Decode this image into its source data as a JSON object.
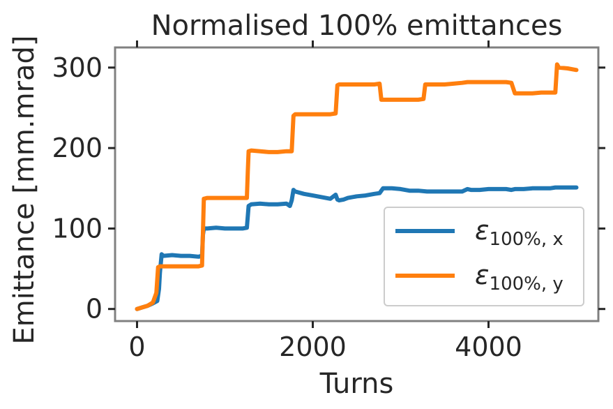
{
  "chart_data": {
    "type": "line",
    "title": "Normalised 100% emittances",
    "xlabel": "Turns",
    "ylabel": "Emittance [mm.mrad]",
    "xlim": [
      -250,
      5250
    ],
    "ylim": [
      -15,
      325
    ],
    "xticks": [
      0,
      2000,
      4000
    ],
    "xtick_labels": [
      "0",
      "2000",
      "4000"
    ],
    "yticks": [
      0,
      100,
      200,
      300
    ],
    "ytick_labels": [
      "0",
      "100",
      "200",
      "300"
    ],
    "grid": false,
    "legend_position": "lower-right",
    "series": [
      {
        "name": "ε100%, x",
        "legend_main": "ε",
        "legend_sub": "100%, x",
        "color": "#1f77b4",
        "x": [
          0,
          60,
          120,
          180,
          230,
          250,
          260,
          280,
          300,
          400,
          500,
          600,
          700,
          740,
          750,
          760,
          800,
          900,
          1000,
          1100,
          1200,
          1250,
          1260,
          1270,
          1300,
          1400,
          1500,
          1600,
          1700,
          1740,
          1760,
          1780,
          1800,
          1900,
          2000,
          2100,
          2200,
          2260,
          2280,
          2300,
          2350,
          2400,
          2500,
          2600,
          2700,
          2760,
          2800,
          2900,
          3000,
          3100,
          3200,
          3300,
          3400,
          3500,
          3600,
          3700,
          3760,
          3800,
          3900,
          4000,
          4100,
          4200,
          4260,
          4300,
          4400,
          4500,
          4600,
          4700,
          4760,
          4800,
          4900,
          5000
        ],
        "y": [
          0,
          2,
          4,
          7,
          10,
          25,
          45,
          68,
          66,
          67,
          66,
          66,
          65,
          66,
          92,
          100,
          100,
          101,
          100,
          100,
          100,
          101,
          115,
          128,
          130,
          131,
          130,
          130,
          131,
          128,
          135,
          148,
          146,
          143,
          141,
          139,
          137,
          142,
          136,
          135,
          136,
          138,
          140,
          141,
          143,
          144,
          150,
          150,
          149,
          147,
          147,
          146,
          146,
          146,
          146,
          146,
          149,
          148,
          148,
          149,
          149,
          149,
          148,
          149,
          149,
          150,
          150,
          150,
          151,
          151,
          151,
          151
        ]
      },
      {
        "name": "ε100%, y",
        "legend_main": "ε",
        "legend_sub": "100%, y",
        "color": "#ff7f0e",
        "x": [
          0,
          60,
          120,
          180,
          220,
          240,
          260,
          300,
          400,
          500,
          600,
          700,
          740,
          760,
          800,
          900,
          1000,
          1100,
          1200,
          1250,
          1260,
          1270,
          1300,
          1400,
          1500,
          1600,
          1700,
          1760,
          1780,
          1800,
          1900,
          2000,
          2100,
          2200,
          2260,
          2280,
          2300,
          2400,
          2500,
          2600,
          2700,
          2760,
          2780,
          2800,
          2900,
          3000,
          3100,
          3200,
          3260,
          3280,
          3300,
          3400,
          3500,
          3600,
          3700,
          3760,
          3800,
          3900,
          4000,
          4100,
          4200,
          4260,
          4300,
          4400,
          4500,
          4600,
          4700,
          4760,
          4780,
          4800,
          4900,
          5000
        ],
        "y": [
          0,
          2,
          4,
          8,
          20,
          52,
          53,
          53,
          53,
          53,
          53,
          53,
          54,
          137,
          138,
          138,
          138,
          138,
          138,
          138,
          170,
          196,
          197,
          196,
          195,
          195,
          196,
          196,
          240,
          242,
          242,
          242,
          242,
          242,
          243,
          278,
          279,
          279,
          279,
          279,
          279,
          280,
          260,
          260,
          260,
          260,
          260,
          260,
          261,
          279,
          279,
          279,
          279,
          280,
          281,
          282,
          282,
          282,
          282,
          282,
          282,
          281,
          268,
          268,
          268,
          269,
          269,
          269,
          304,
          300,
          299,
          297
        ]
      }
    ]
  }
}
